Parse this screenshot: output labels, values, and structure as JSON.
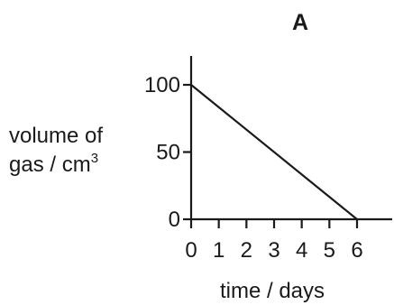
{
  "chart_data": {
    "type": "line",
    "title": "A",
    "xlabel": "time / days",
    "ylabel_lines": [
      "volume of",
      "gas / cm"
    ],
    "ylabel_superscript": "3",
    "xlim": [
      0,
      6
    ],
    "ylim": [
      0,
      100
    ],
    "x_ticks": [
      0,
      1,
      2,
      3,
      4,
      5,
      6
    ],
    "x_tick_labels": [
      "0",
      "1",
      "2",
      "3",
      "4",
      "5",
      "6"
    ],
    "y_ticks": [
      0,
      50,
      100
    ],
    "y_tick_labels": [
      "0",
      "50",
      "100"
    ],
    "grid": false,
    "legend": "none",
    "series": [
      {
        "x": [
          0,
          6
        ],
        "y": [
          100,
          0
        ]
      }
    ]
  }
}
